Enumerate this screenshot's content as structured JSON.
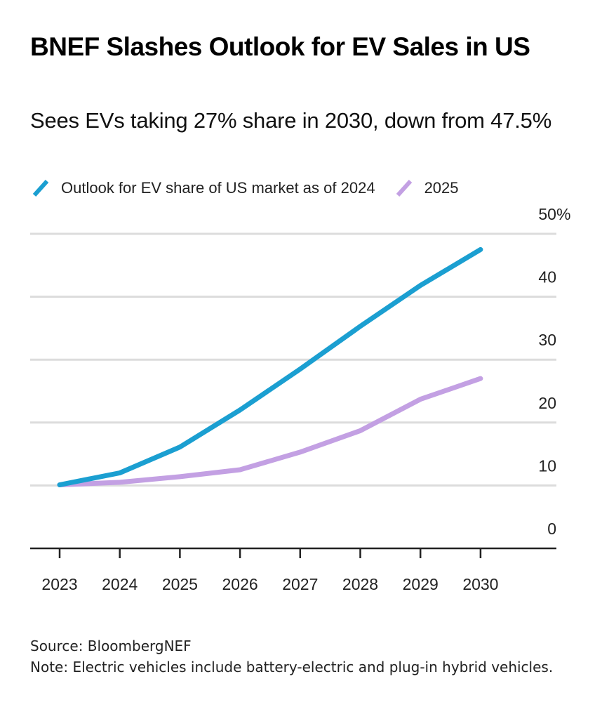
{
  "header": {
    "title": "BNEF Slashes Outlook for EV Sales in US",
    "subtitle": "Sees EVs taking 27% share in 2030, down from 47.5%"
  },
  "legend": {
    "items": [
      {
        "label": "Outlook for EV share of US market as of 2024",
        "color": "#1b9fd1"
      },
      {
        "label": "2025",
        "color": "#c3a0e3"
      }
    ]
  },
  "chart_data": {
    "type": "line",
    "title": "BNEF Slashes Outlook for EV Sales in US",
    "subtitle": "Sees EVs taking 27% share in 2030, down from 47.5%",
    "xlabel": "",
    "ylabel": "",
    "x": [
      "2023",
      "2024",
      "2025",
      "2026",
      "2027",
      "2028",
      "2029",
      "2030"
    ],
    "series": [
      {
        "name": "Outlook for EV share of US market as of 2024",
        "color": "#1b9fd1",
        "values": [
          10.1,
          12.0,
          16.1,
          22.0,
          28.5,
          35.3,
          41.8,
          47.5
        ]
      },
      {
        "name": "2025",
        "color": "#c3a0e3",
        "values": [
          10.1,
          10.5,
          11.4,
          12.5,
          15.3,
          18.7,
          23.7,
          27.0
        ]
      }
    ],
    "ylim": [
      0,
      50
    ],
    "yticks": [
      0,
      10,
      20,
      30,
      40,
      50
    ],
    "ytick_labels": [
      "0",
      "10",
      "20",
      "30",
      "40",
      "50%"
    ],
    "y_axis_side": "right",
    "grid": true,
    "legend_position": "top-left"
  },
  "footer": {
    "source": "Source: BloombergNEF",
    "note": "Note: Electric vehicles include battery-electric and plug-in hybrid vehicles."
  }
}
